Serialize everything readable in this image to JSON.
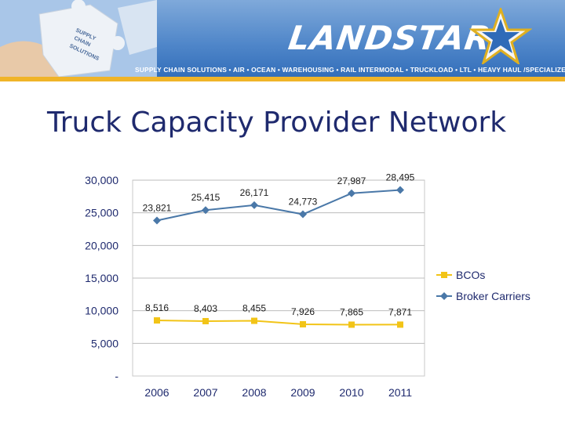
{
  "header": {
    "logo_text": "LANDSTAR",
    "puzzle_text": [
      "SUPPLY",
      "CHAIN",
      "SOLUTIONS"
    ],
    "tagline": "SUPPLY CHAIN SOLUTIONS • AIR • OCEAN • WAREHOUSING • RAIL INTERMODAL • TRUCKLOAD • LTL • HEAVY HAUL /SPECIALIZED • EXPEDITED",
    "accent_color": "#f0b428",
    "banner_color": "#4f86c9"
  },
  "slide": {
    "title": "Truck Capacity Provider Network"
  },
  "chart_data": {
    "type": "line",
    "title": "",
    "xlabel": "",
    "ylabel": "",
    "categories": [
      "2006",
      "2007",
      "2008",
      "2009",
      "2010",
      "2011"
    ],
    "ylim": [
      0,
      30000
    ],
    "yticks": [
      {
        "value": 0,
        "label": "-"
      },
      {
        "value": 5000,
        "label": "5,000"
      },
      {
        "value": 10000,
        "label": "10,000"
      },
      {
        "value": 15000,
        "label": "15,000"
      },
      {
        "value": 20000,
        "label": "20,000"
      },
      {
        "value": 25000,
        "label": "25,000"
      },
      {
        "value": 30000,
        "label": "30,000"
      }
    ],
    "grid": true,
    "legend_position": "right",
    "series": [
      {
        "name": "BCOs",
        "color": "#f2c417",
        "marker": "square",
        "values": [
          8516,
          8403,
          8455,
          7926,
          7865,
          7871
        ],
        "labels": [
          "8,516",
          "8,403",
          "8,455",
          "7,926",
          "7,865",
          "7,871"
        ]
      },
      {
        "name": "Broker Carriers",
        "color": "#4a78a8",
        "marker": "diamond",
        "values": [
          23821,
          25415,
          26171,
          24773,
          27987,
          28495
        ],
        "labels": [
          "23,821",
          "25,415",
          "26,171",
          "24,773",
          "27,987",
          "28,495"
        ]
      }
    ]
  }
}
